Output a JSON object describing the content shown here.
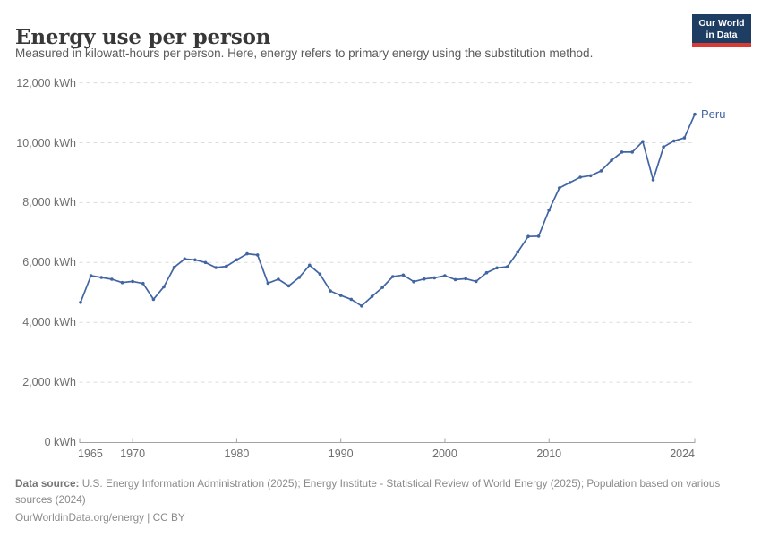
{
  "header": {
    "title": "Energy use per person",
    "subtitle": "Measured in kilowatt-hours per person. Here, energy refers to primary energy using the substitution method."
  },
  "logo": {
    "line1": "Our World",
    "line2": "in Data"
  },
  "chart_data": {
    "type": "line",
    "title": "Energy use per person",
    "unit": "kWh",
    "xlabel": "",
    "ylabel": "",
    "xlim": [
      1965,
      2024
    ],
    "ylim": [
      0,
      12000
    ],
    "grid": true,
    "legend": "end-of-line-label",
    "x": [
      1965,
      1966,
      1967,
      1968,
      1969,
      1970,
      1971,
      1972,
      1973,
      1974,
      1975,
      1976,
      1977,
      1978,
      1979,
      1980,
      1981,
      1982,
      1983,
      1984,
      1985,
      1986,
      1987,
      1988,
      1989,
      1990,
      1991,
      1992,
      1993,
      1994,
      1995,
      1996,
      1997,
      1998,
      1999,
      2000,
      2001,
      2002,
      2003,
      2004,
      2005,
      2006,
      2007,
      2008,
      2009,
      2010,
      2011,
      2012,
      2013,
      2014,
      2015,
      2016,
      2017,
      2018,
      2019,
      2020,
      2021,
      2022,
      2023,
      2024
    ],
    "series": [
      {
        "name": "Peru",
        "color": "#4165a3",
        "values": [
          4670,
          5560,
          5500,
          5440,
          5330,
          5370,
          5300,
          4770,
          5190,
          5840,
          6120,
          6090,
          6000,
          5830,
          5870,
          6090,
          6290,
          6250,
          5310,
          5440,
          5220,
          5500,
          5910,
          5610,
          5050,
          4900,
          4770,
          4550,
          4870,
          5170,
          5530,
          5580,
          5360,
          5450,
          5490,
          5560,
          5430,
          5460,
          5370,
          5660,
          5820,
          5860,
          6350,
          6870,
          6880,
          7750,
          8490,
          8670,
          8850,
          8900,
          9060,
          9410,
          9690,
          9690,
          10040,
          8760,
          9860,
          10060,
          10160,
          10950
        ]
      }
    ],
    "yticks": [
      {
        "value": 0,
        "label": "0 kWh"
      },
      {
        "value": 2000,
        "label": "2,000 kWh"
      },
      {
        "value": 4000,
        "label": "4,000 kWh"
      },
      {
        "value": 6000,
        "label": "6,000 kWh"
      },
      {
        "value": 8000,
        "label": "8,000 kWh"
      },
      {
        "value": 10000,
        "label": "10,000 kWh"
      },
      {
        "value": 12000,
        "label": "12,000 kWh"
      }
    ],
    "xticks": [
      {
        "value": 1965,
        "label": "1965"
      },
      {
        "value": 1970,
        "label": "1970"
      },
      {
        "value": 1980,
        "label": "1980"
      },
      {
        "value": 1990,
        "label": "1990"
      },
      {
        "value": 2000,
        "label": "2000"
      },
      {
        "value": 2010,
        "label": "2010"
      },
      {
        "value": 2024,
        "label": "2024"
      }
    ]
  },
  "colors": {
    "line": "#4165a3",
    "grid": "#dcdcdc",
    "axis": "#a3a3a3",
    "logo_bg": "#1d3d63",
    "logo_bar": "#d93a34"
  },
  "footer": {
    "source_label": "Data source:",
    "source_text": "U.S. Energy Information Administration (2025); Energy Institute - Statistical Review of World Energy (2025); Population based on various sources (2024)",
    "license_line": "OurWorldinData.org/energy | CC BY"
  }
}
